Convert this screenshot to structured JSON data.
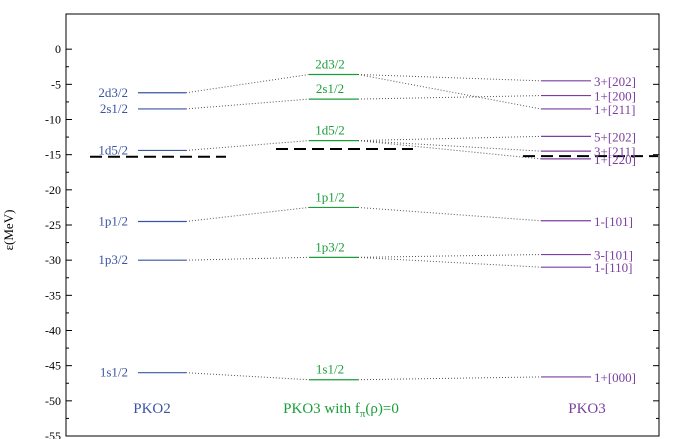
{
  "chart_data": {
    "type": "level-diagram",
    "ylabel": "ε(MeV)",
    "ylim": [
      -55,
      5
    ],
    "yticks": [
      0,
      -5,
      -10,
      -15,
      -20,
      -25,
      -30,
      -35,
      -40,
      -45,
      -50,
      -55
    ],
    "grid": false,
    "colors": {
      "PKO2": "#3a54a4",
      "PKO3_fpi0": "#1a9e3a",
      "PKO3": "#7b3fa0",
      "fermi": "#000000",
      "connector": "#555555"
    },
    "columns": [
      {
        "id": "PKO2",
        "label": "PKO2",
        "levels": [
          {
            "label": "2d3/2",
            "energy": -6.2
          },
          {
            "label": "2s1/2",
            "energy": -8.5
          },
          {
            "label": "1d5/2",
            "energy": -14.4
          },
          {
            "label": "1p1/2",
            "energy": -24.5
          },
          {
            "label": "1p3/2",
            "energy": -30.0
          },
          {
            "label": "1s1/2",
            "energy": -46.0
          }
        ],
        "fermi_energy": -15.3
      },
      {
        "id": "PKO3_fpi0",
        "label_main": "PKO3 with f",
        "label_sub": "π",
        "label_tail": "(ρ)=0",
        "levels": [
          {
            "label": "2d3/2",
            "energy": -3.6
          },
          {
            "label": "2s1/2",
            "energy": -7.1
          },
          {
            "label": "1d5/2",
            "energy": -13.0
          },
          {
            "label": "1p1/2",
            "energy": -22.5
          },
          {
            "label": "1p3/2",
            "energy": -29.6
          },
          {
            "label": "1s1/2",
            "energy": -47.0
          }
        ],
        "fermi_energy": -14.2
      },
      {
        "id": "PKO3",
        "label": "PKO3",
        "levels": [
          {
            "label": "3+[202]",
            "energy": -4.5
          },
          {
            "label": "1+[200]",
            "energy": -6.6
          },
          {
            "label": "1+[211]",
            "energy": -8.5
          },
          {
            "label": "5+[202]",
            "energy": -12.4
          },
          {
            "label": "3+[211]",
            "energy": -14.5
          },
          {
            "label": "1+[220]",
            "energy": -15.6
          },
          {
            "label": "1-[101]",
            "energy": -24.4
          },
          {
            "label": "3-[101]",
            "energy": -29.2
          },
          {
            "label": "1-[110]",
            "energy": -31.0
          },
          {
            "label": "1+[000]",
            "energy": -46.6
          }
        ],
        "fermi_energy": -15.2
      }
    ],
    "connections": [
      {
        "from": [
          "PKO2",
          0
        ],
        "to": [
          "PKO3_fpi0",
          0
        ]
      },
      {
        "from": [
          "PKO2",
          1
        ],
        "to": [
          "PKO3_fpi0",
          1
        ]
      },
      {
        "from": [
          "PKO2",
          2
        ],
        "to": [
          "PKO3_fpi0",
          2
        ]
      },
      {
        "from": [
          "PKO2",
          3
        ],
        "to": [
          "PKO3_fpi0",
          3
        ]
      },
      {
        "from": [
          "PKO2",
          4
        ],
        "to": [
          "PKO3_fpi0",
          4
        ]
      },
      {
        "from": [
          "PKO2",
          5
        ],
        "to": [
          "PKO3_fpi0",
          5
        ]
      },
      {
        "from": [
          "PKO3_fpi0",
          0
        ],
        "to": [
          "PKO3",
          0
        ]
      },
      {
        "from": [
          "PKO3_fpi0",
          0
        ],
        "to": [
          "PKO3",
          2
        ]
      },
      {
        "from": [
          "PKO3_fpi0",
          1
        ],
        "to": [
          "PKO3",
          1
        ]
      },
      {
        "from": [
          "PKO3_fpi0",
          2
        ],
        "to": [
          "PKO3",
          3
        ]
      },
      {
        "from": [
          "PKO3_fpi0",
          2
        ],
        "to": [
          "PKO3",
          4
        ]
      },
      {
        "from": [
          "PKO3_fpi0",
          2
        ],
        "to": [
          "PKO3",
          5
        ]
      },
      {
        "from": [
          "PKO3_fpi0",
          3
        ],
        "to": [
          "PKO3",
          6
        ]
      },
      {
        "from": [
          "PKO3_fpi0",
          4
        ],
        "to": [
          "PKO3",
          7
        ]
      },
      {
        "from": [
          "PKO3_fpi0",
          4
        ],
        "to": [
          "PKO3",
          8
        ]
      },
      {
        "from": [
          "PKO3_fpi0",
          5
        ],
        "to": [
          "PKO3",
          9
        ]
      }
    ]
  }
}
